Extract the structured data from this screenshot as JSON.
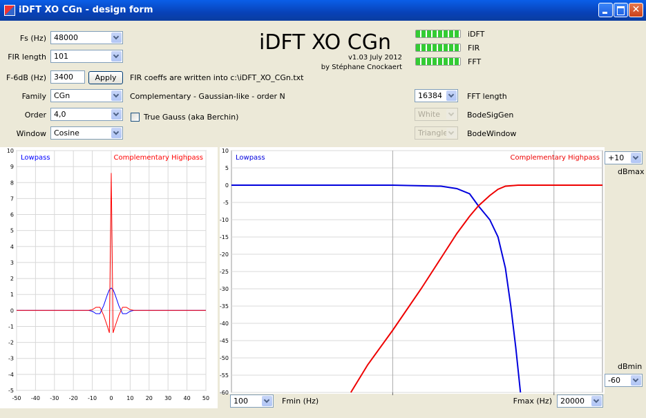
{
  "window": {
    "title": "iDFT XO CGn - design form"
  },
  "form": {
    "fields": [
      {
        "label": "Fs (Hz)",
        "value": "48000"
      },
      {
        "label": "FIR length",
        "value": "101"
      },
      {
        "label": "F-6dB (Hz)",
        "value": "3400"
      },
      {
        "label": "Family",
        "value": "CGn"
      },
      {
        "label": "Order",
        "value": "4,0"
      },
      {
        "label": "Window",
        "value": "Cosine"
      }
    ],
    "apply": "Apply",
    "fir_note": "FIR coeffs are written into c:\\iDFT_XO_CGn.txt",
    "family_desc": "Complementary - Gaussian-like - order N",
    "true_gauss": "True Gauss (aka Berchin)",
    "app_title": "iDFT XO CGn",
    "version": "v1.03 July 2012",
    "author": "by Stéphane Cnockaert",
    "progress": [
      "iDFT",
      "FIR",
      "FFT"
    ],
    "right_fields": [
      {
        "label": "FFT length",
        "value": "16384"
      },
      {
        "label": "BodeSigGen",
        "value": "White"
      },
      {
        "label": "BodeWindow",
        "value": "Triangle"
      }
    ]
  },
  "bode_controls": {
    "dbmax": "+10",
    "dbmax_label": "dBmax",
    "dbmin": "-60",
    "dbmin_label": "dBmin",
    "fmin": "100",
    "fmin_label": "Fmin (Hz)",
    "fmax": "20000",
    "fmax_label": "Fmax (Hz)"
  },
  "chart_data": [
    {
      "type": "line",
      "x": [
        -50,
        -20,
        -12,
        -10,
        -8,
        -6,
        -4,
        -2,
        -1,
        0,
        1,
        2,
        4,
        6,
        8,
        10,
        12,
        20,
        50
      ],
      "series": [
        {
          "name": "Lowpass",
          "color": "#0000ff",
          "values": [
            0,
            0,
            0,
            -0.05,
            -0.2,
            -0.2,
            0.3,
            1.0,
            1.3,
            1.4,
            1.3,
            1.0,
            0.3,
            -0.2,
            -0.2,
            -0.05,
            0,
            0,
            0
          ]
        },
        {
          "name": "Complementary Highpass",
          "color": "#ff0000",
          "values": [
            0,
            0,
            0,
            0.05,
            0.2,
            0.2,
            -0.3,
            -1.0,
            -1.4,
            8.6,
            -1.4,
            -1.0,
            -0.3,
            0.2,
            0.2,
            0.05,
            0,
            0,
            0
          ]
        }
      ],
      "xlim": [
        -50,
        50
      ],
      "xticks": [
        -50,
        -40,
        -30,
        -20,
        -10,
        0,
        10,
        20,
        30,
        40,
        50
      ],
      "ylim": [
        -5,
        10
      ],
      "yticks": [
        -5,
        -4,
        -3,
        -2,
        -1,
        0,
        1,
        2,
        3,
        4,
        5,
        6,
        7,
        8,
        9,
        10
      ],
      "grid": true
    },
    {
      "type": "line",
      "xscale": "log",
      "series": [
        {
          "name": "Lowpass",
          "color": "#0000dd",
          "x": [
            100,
            1000,
            2000,
            2500,
            3000,
            3400,
            4000,
            4500,
            5000,
            5400,
            5800,
            6200
          ],
          "values": [
            0,
            0,
            -0.3,
            -1,
            -2.5,
            -6,
            -10,
            -15,
            -24,
            -35,
            -47,
            -60
          ]
        },
        {
          "name": "Complementary Highpass",
          "color": "#ee0000",
          "x": [
            550,
            700,
            1000,
            1500,
            2000,
            2500,
            3000,
            3400,
            4000,
            4500,
            5000,
            6000,
            20000
          ],
          "values": [
            -60,
            -52,
            -42,
            -30,
            -21,
            -14,
            -9,
            -6,
            -3,
            -1.2,
            -0.3,
            0,
            0
          ]
        }
      ],
      "xlim": [
        100,
        20000
      ],
      "xticks": [
        1000,
        10000
      ],
      "ylim": [
        -60,
        10
      ],
      "yticks": [
        -60,
        -55,
        -50,
        -45,
        -40,
        -35,
        -30,
        -25,
        -20,
        -15,
        -10,
        -5,
        0,
        5,
        10
      ],
      "grid": true
    }
  ]
}
